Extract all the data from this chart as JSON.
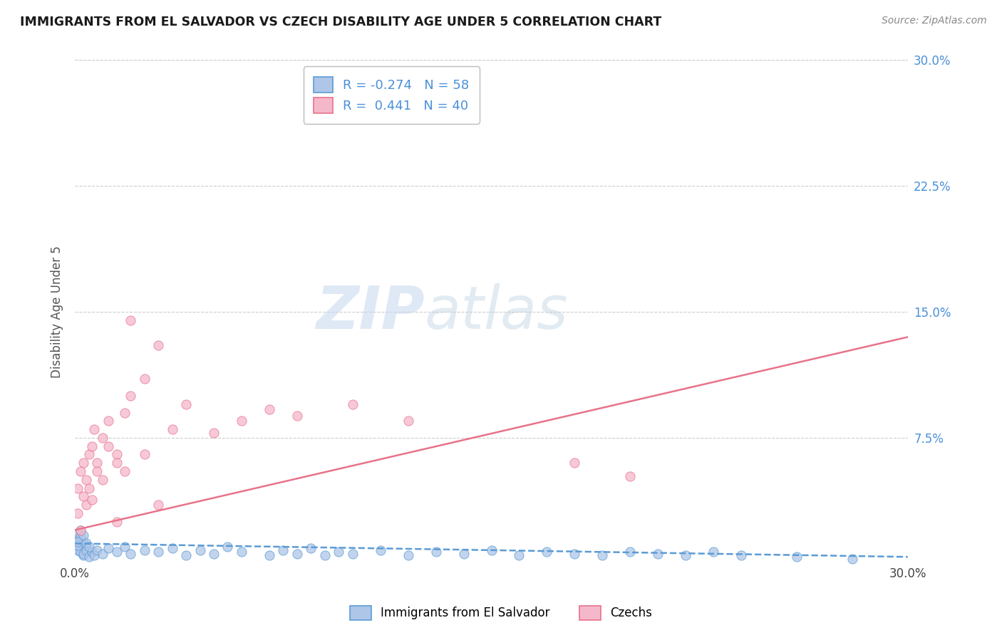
{
  "title": "IMMIGRANTS FROM EL SALVADOR VS CZECH DISABILITY AGE UNDER 5 CORRELATION CHART",
  "source": "Source: ZipAtlas.com",
  "ylabel": "Disability Age Under 5",
  "xlim": [
    0.0,
    0.3
  ],
  "ylim": [
    0.0,
    0.3
  ],
  "legend_labels": [
    "Immigrants from El Salvador",
    "Czechs"
  ],
  "legend_r": [
    -0.274,
    0.441
  ],
  "legend_n": [
    58,
    40
  ],
  "blue_color": "#aec6e8",
  "pink_color": "#f5b8cb",
  "blue_line_color": "#5b9bd5",
  "pink_line_color": "#e8728a",
  "blue_scatter_x": [
    0.001,
    0.002,
    0.001,
    0.003,
    0.002,
    0.001,
    0.003,
    0.002,
    0.004,
    0.001,
    0.002,
    0.003,
    0.001,
    0.004,
    0.002,
    0.005,
    0.003,
    0.006,
    0.004,
    0.007,
    0.005,
    0.008,
    0.01,
    0.012,
    0.015,
    0.018,
    0.02,
    0.025,
    0.03,
    0.035,
    0.04,
    0.045,
    0.05,
    0.055,
    0.06,
    0.07,
    0.075,
    0.08,
    0.085,
    0.09,
    0.095,
    0.1,
    0.11,
    0.12,
    0.13,
    0.14,
    0.15,
    0.16,
    0.17,
    0.18,
    0.19,
    0.2,
    0.21,
    0.22,
    0.23,
    0.24,
    0.26,
    0.28
  ],
  "blue_scatter_y": [
    0.015,
    0.01,
    0.008,
    0.012,
    0.007,
    0.018,
    0.005,
    0.014,
    0.009,
    0.011,
    0.016,
    0.006,
    0.013,
    0.008,
    0.02,
    0.004,
    0.017,
    0.007,
    0.012,
    0.005,
    0.01,
    0.008,
    0.006,
    0.009,
    0.007,
    0.01,
    0.006,
    0.008,
    0.007,
    0.009,
    0.005,
    0.008,
    0.006,
    0.01,
    0.007,
    0.005,
    0.008,
    0.006,
    0.009,
    0.005,
    0.007,
    0.006,
    0.008,
    0.005,
    0.007,
    0.006,
    0.008,
    0.005,
    0.007,
    0.006,
    0.005,
    0.007,
    0.006,
    0.005,
    0.007,
    0.005,
    0.004,
    0.003
  ],
  "pink_scatter_x": [
    0.001,
    0.002,
    0.003,
    0.001,
    0.004,
    0.002,
    0.005,
    0.003,
    0.006,
    0.004,
    0.007,
    0.005,
    0.008,
    0.006,
    0.01,
    0.008,
    0.012,
    0.015,
    0.01,
    0.018,
    0.012,
    0.02,
    0.015,
    0.025,
    0.018,
    0.03,
    0.02,
    0.035,
    0.025,
    0.04,
    0.05,
    0.06,
    0.07,
    0.08,
    0.1,
    0.12,
    0.18,
    0.2,
    0.03,
    0.015
  ],
  "pink_scatter_y": [
    0.03,
    0.02,
    0.06,
    0.045,
    0.035,
    0.055,
    0.065,
    0.04,
    0.07,
    0.05,
    0.08,
    0.045,
    0.06,
    0.038,
    0.075,
    0.055,
    0.085,
    0.065,
    0.05,
    0.09,
    0.07,
    0.1,
    0.06,
    0.11,
    0.055,
    0.13,
    0.145,
    0.08,
    0.065,
    0.095,
    0.078,
    0.085,
    0.092,
    0.088,
    0.095,
    0.085,
    0.06,
    0.052,
    0.035,
    0.025
  ],
  "blue_line_x0": 0.0,
  "blue_line_x1": 0.3,
  "blue_line_y0": 0.012,
  "blue_line_y1": 0.004,
  "pink_line_x0": 0.0,
  "pink_line_x1": 0.3,
  "pink_line_y0": 0.02,
  "pink_line_y1": 0.135,
  "watermark_zip": "ZIP",
  "watermark_atlas": "atlas",
  "background_color": "#ffffff",
  "grid_color": "#cccccc",
  "tick_color": "#4a90d9",
  "right_ytick_vals": [
    0.075,
    0.15,
    0.225,
    0.3
  ],
  "right_ytick_labels": [
    "7.5%",
    "15.0%",
    "22.5%",
    "30.0%"
  ]
}
